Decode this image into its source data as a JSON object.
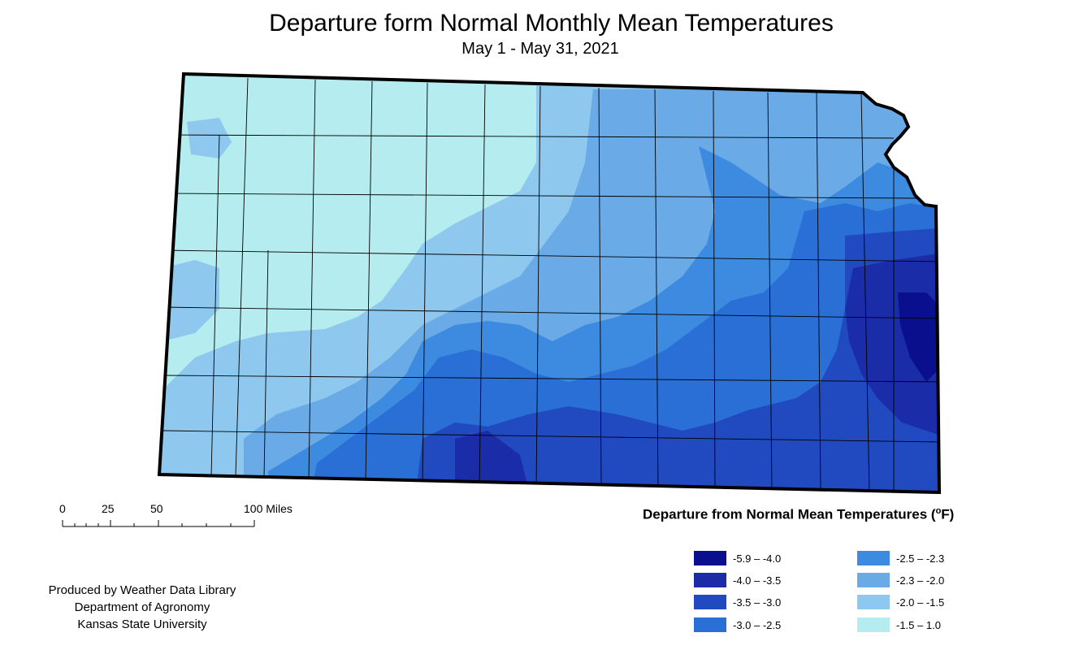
{
  "title": "Departure form Normal Monthly Mean Temperatures",
  "subtitle": "May 1 - May 31, 2021",
  "map": {
    "region": "Kansas",
    "colors": [
      "#0a0f8e",
      "#1a2ca8",
      "#2149c0",
      "#2a6fd6",
      "#3d8be0",
      "#6aaae6",
      "#8ec8ee",
      "#b5ecef"
    ]
  },
  "scale_bar": {
    "labels": [
      "0",
      "25",
      "50",
      "100 Miles"
    ]
  },
  "legend": {
    "title": "Departure from Normal Mean Temperatures (",
    "unit_sup": "o",
    "unit_end": "F)",
    "items": [
      {
        "label": "-5.9 – -4.0",
        "color": "#0a0f8e"
      },
      {
        "label": "-4.0 – -3.5",
        "color": "#1a2ca8"
      },
      {
        "label": "-3.5 – -3.0",
        "color": "#2149c0"
      },
      {
        "label": "-3.0 – -2.5",
        "color": "#2a6fd6"
      },
      {
        "label": "-2.5 – -2.3",
        "color": "#3d8be0"
      },
      {
        "label": "-2.3 – -2.0",
        "color": "#6aaae6"
      },
      {
        "label": "-2.0 – -1.5",
        "color": "#8ec8ee"
      },
      {
        "label": "-1.5 – 1.0",
        "color": "#b5ecef"
      }
    ]
  },
  "credits": [
    "Produced by Weather Data Library",
    "Department of Agronomy",
    "Kansas State University"
  ]
}
